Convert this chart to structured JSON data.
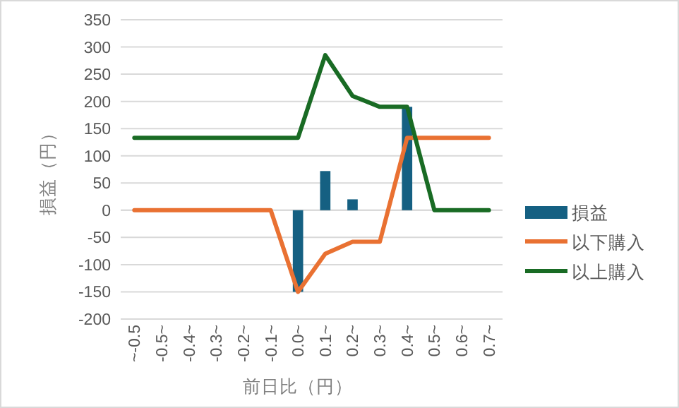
{
  "chart_data": {
    "type": "bar",
    "ylabel": "損益（円）",
    "xlabel": "前日比（円）",
    "categories": [
      "~-0.5",
      "-0.5~",
      "-0.4~",
      "-0.3~",
      "-0.2~",
      "-0.1~",
      "0.0~",
      "0.1~",
      "0.2~",
      "0.3~",
      "0.4~",
      "0.5~",
      "0.6~",
      "0.7~"
    ],
    "series": [
      {
        "name": "損益",
        "type": "bar",
        "color": "#156082",
        "values": [
          null,
          null,
          null,
          null,
          null,
          null,
          -150,
          72,
          20,
          null,
          190,
          null,
          null,
          null
        ]
      },
      {
        "name": "以下購入",
        "type": "line",
        "color": "#e97132",
        "values": [
          0,
          0,
          0,
          0,
          0,
          0,
          -150,
          -80,
          -58,
          -58,
          133,
          133,
          133,
          133
        ]
      },
      {
        "name": "以上購入",
        "type": "line",
        "color": "#196b24",
        "values": [
          133,
          133,
          133,
          133,
          133,
          133,
          133,
          285,
          210,
          190,
          190,
          0,
          0,
          0
        ]
      }
    ],
    "ylim": [
      -200,
      350
    ],
    "yticks": [
      -200,
      -150,
      -100,
      -50,
      0,
      50,
      100,
      150,
      200,
      250,
      300,
      350
    ],
    "grid": "y",
    "legend": "right"
  }
}
